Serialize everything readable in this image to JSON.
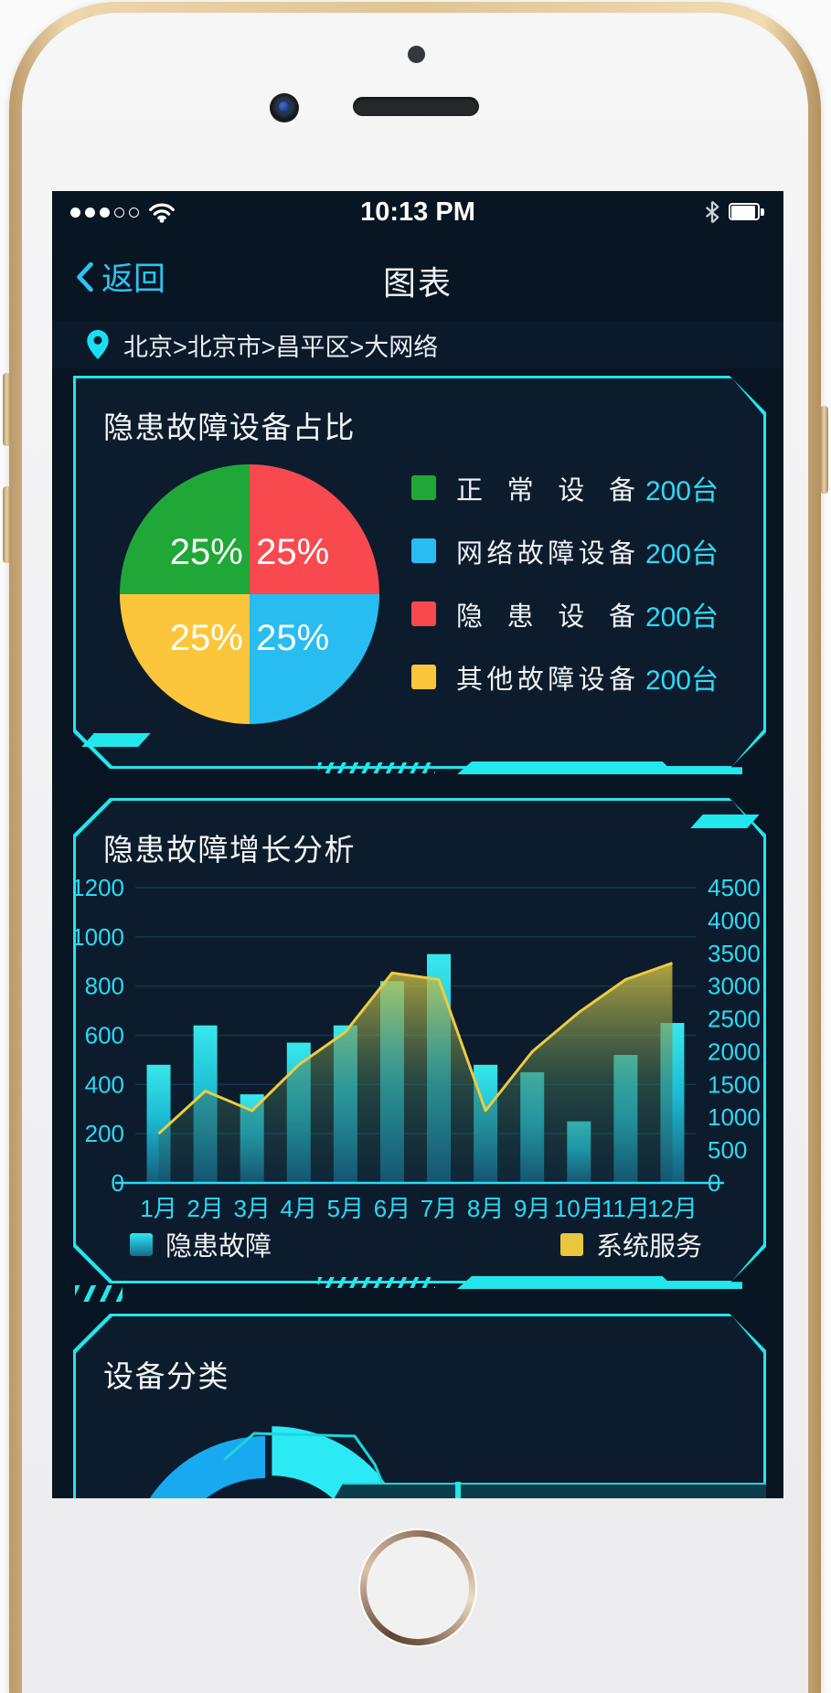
{
  "status_bar": {
    "time": "10:13 PM",
    "signal": {
      "filled_dots": 3,
      "total_dots": 5
    },
    "icons": [
      "signal-dots",
      "wifi-icon",
      "bluetooth-icon",
      "battery-icon"
    ],
    "battery_level_pct": 90
  },
  "nav": {
    "back_label": "返回",
    "back_icon": "chevron-left-icon",
    "title": "图表"
  },
  "breadcrumb": {
    "icon": "location-pin-icon",
    "text": "北京>北京市>昌平区>大网络"
  },
  "colors": {
    "screen_bg": "#081523",
    "card_bg": "#0d1c2d",
    "frame_cyan": "#21e6ec",
    "tick_cyan": "#2bd9f6",
    "value_cyan": "#2fd9f8",
    "title_white": "#f3f6f8"
  },
  "cards": {
    "pie": {
      "title": "隐患故障设备占比",
      "chart_data": {
        "type": "pie",
        "slice_label_format": "25%",
        "slices": [
          {
            "label": "正常设备",
            "value": "200台",
            "pct": 25,
            "color": "#1fa838",
            "start_deg": 270
          },
          {
            "label": "网络故障设备",
            "value": "200台",
            "pct": 25,
            "color": "#27bdf0",
            "start_deg": 90
          },
          {
            "label": "隐患设备",
            "value": "200台",
            "pct": 25,
            "color": "#f8494f",
            "start_deg": 0
          },
          {
            "label": "其他故障设备",
            "value": "200台",
            "pct": 25,
            "color": "#fcc63c",
            "start_deg": 180
          }
        ]
      }
    },
    "growth": {
      "title": "隐患故障增长分析",
      "chart_data": {
        "type": "bar+area",
        "categories": [
          "1月",
          "2月",
          "3月",
          "4月",
          "5月",
          "6月",
          "7月",
          "8月",
          "9月",
          "10月",
          "11月",
          "12月"
        ],
        "series": [
          {
            "name": "隐患故障",
            "type": "bar",
            "axis": "left",
            "color_top": "#3af2f5",
            "color_bottom": "#16607f",
            "values": [
              480,
              640,
              360,
              570,
              640,
              820,
              930,
              480,
              450,
              250,
              520,
              650
            ]
          },
          {
            "name": "系统服务",
            "type": "area",
            "axis": "right",
            "line_color": "#eecb41",
            "values": [
              750,
              1400,
              1100,
              1800,
              2300,
              3200,
              3100,
              1100,
              2000,
              2600,
              3100,
              3350
            ]
          }
        ],
        "left_axis": {
          "min": 0,
          "max": 1200,
          "ticks": [
            0,
            200,
            400,
            600,
            800,
            1000,
            1200
          ]
        },
        "right_axis": {
          "min": 0,
          "max": 4500,
          "ticks": [
            0,
            500,
            1000,
            1500,
            2000,
            2500,
            3000,
            3500,
            4000,
            4500
          ]
        },
        "grid": true,
        "legend_position": "bottom"
      }
    },
    "category": {
      "title": "设备分类",
      "chart_data": {
        "type": "donut",
        "segments": [
          {
            "color": "#2beaf6",
            "start_deg": 0,
            "end_deg": 95,
            "raised": true
          },
          {
            "color": "#18a9f1",
            "start_deg": 205,
            "end_deg": 360,
            "raised": false
          }
        ]
      }
    }
  }
}
